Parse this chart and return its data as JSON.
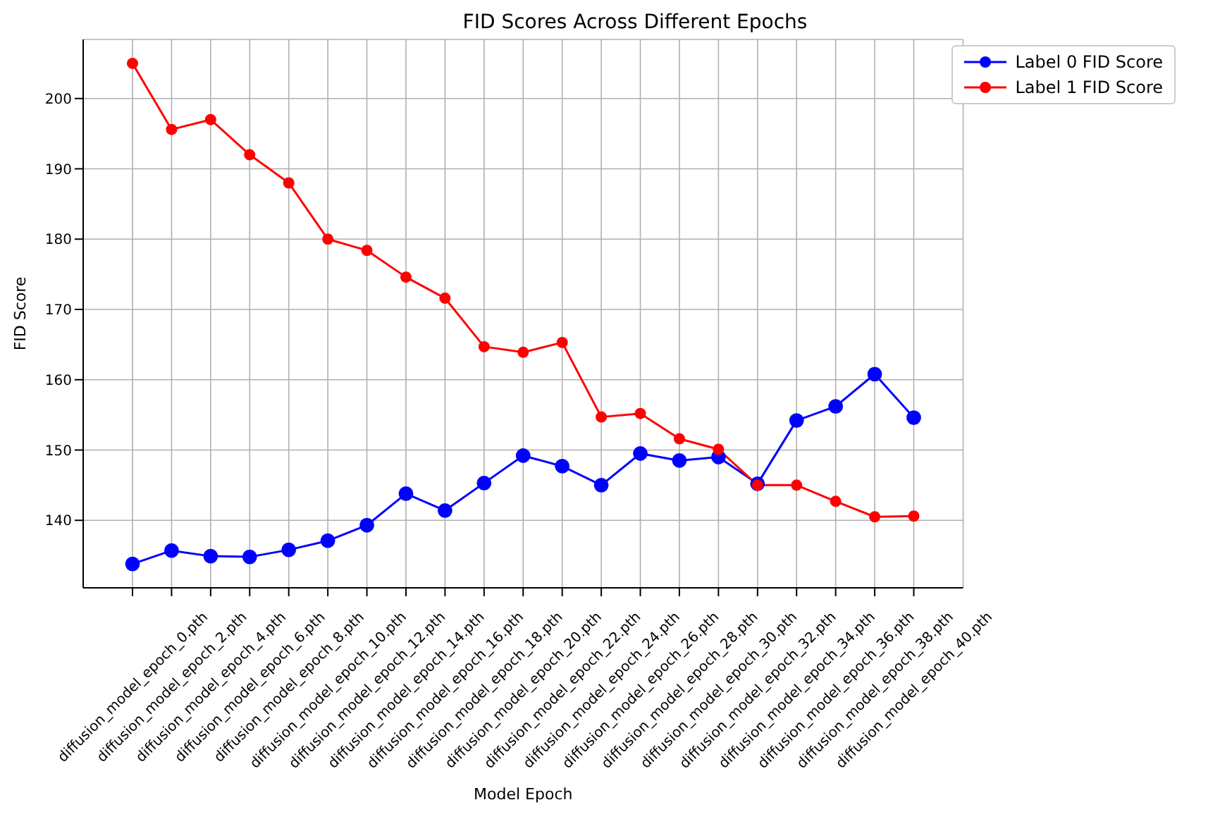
{
  "chart_data": {
    "type": "line",
    "title": "FID Scores Across Different Epochs",
    "xlabel": "Model Epoch",
    "ylabel": "FID Score",
    "categories": [
      "diffusion_model_epoch_0.pth",
      "diffusion_model_epoch_2.pth",
      "diffusion_model_epoch_4.pth",
      "diffusion_model_epoch_6.pth",
      "diffusion_model_epoch_8.pth",
      "diffusion_model_epoch_10.pth",
      "diffusion_model_epoch_12.pth",
      "diffusion_model_epoch_14.pth",
      "diffusion_model_epoch_16.pth",
      "diffusion_model_epoch_18.pth",
      "diffusion_model_epoch_20.pth",
      "diffusion_model_epoch_22.pth",
      "diffusion_model_epoch_24.pth",
      "diffusion_model_epoch_26.pth",
      "diffusion_model_epoch_28.pth",
      "diffusion_model_epoch_30.pth",
      "diffusion_model_epoch_32.pth",
      "diffusion_model_epoch_34.pth",
      "diffusion_model_epoch_36.pth",
      "diffusion_model_epoch_38.pth",
      "diffusion_model_epoch_40.pth"
    ],
    "series": [
      {
        "name": "Label 0 FID Score",
        "color": "#0000ff",
        "values": [
          133.8,
          135.7,
          134.9,
          134.8,
          135.8,
          137.1,
          139.3,
          143.8,
          141.4,
          145.3,
          149.2,
          147.7,
          145,
          149.5,
          148.5,
          149,
          145.2,
          154.2,
          156.2,
          160.8,
          154.6
        ]
      },
      {
        "name": "Label 1 FID Score",
        "color": "#ff0000",
        "values": [
          205,
          195.6,
          197,
          192,
          188,
          180,
          178.4,
          174.6,
          171.6,
          164.7,
          163.9,
          165.3,
          154.7,
          155.2,
          151.6,
          150.1,
          145,
          145,
          142.7,
          140.5,
          140.6
        ]
      }
    ],
    "ylim": [
      130.4,
      208.4
    ],
    "yticks": [
      140,
      150,
      160,
      170,
      180,
      190,
      200
    ],
    "grid": true,
    "legend": "top right",
    "marker": "circle",
    "line_style": "solid"
  }
}
